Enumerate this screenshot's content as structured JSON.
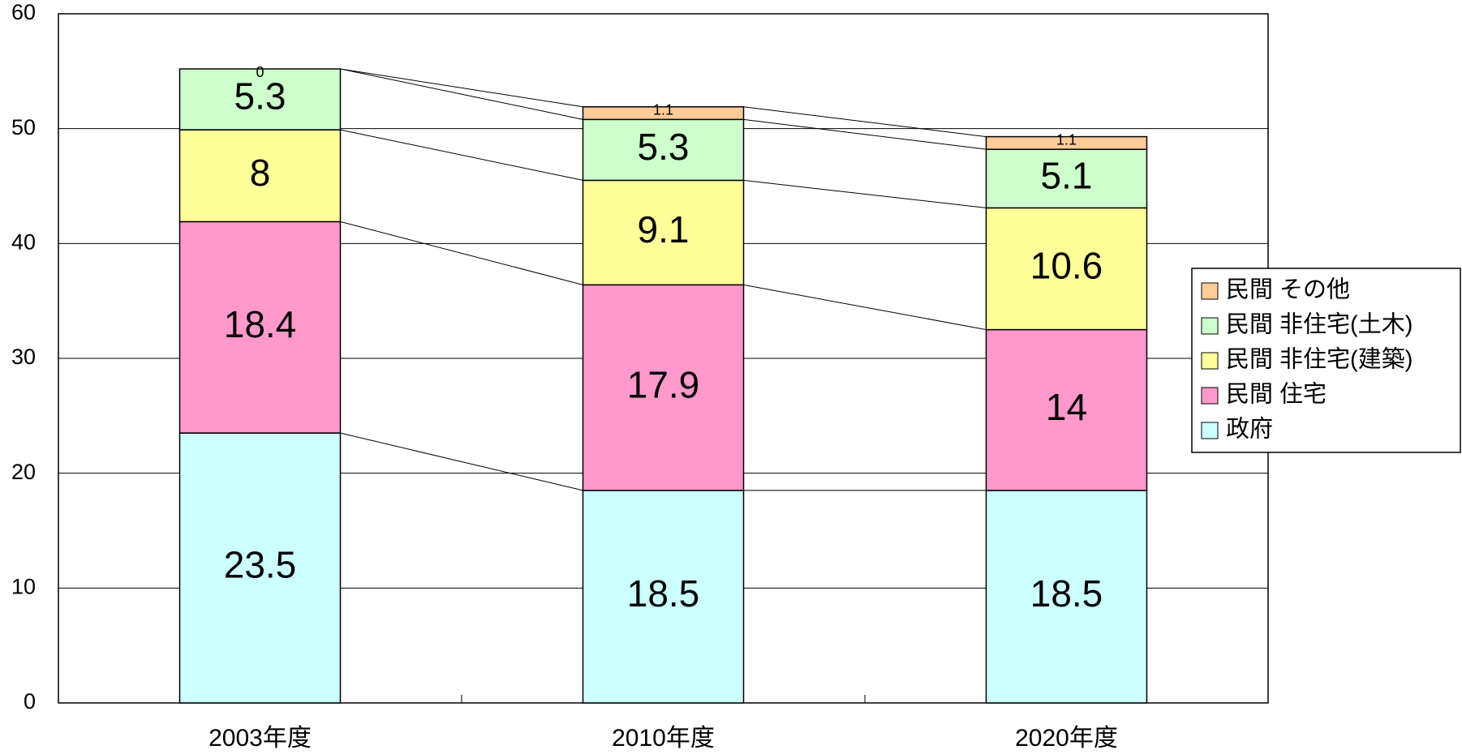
{
  "chart_data": {
    "type": "stacked_bar",
    "categories": [
      "2003年度",
      "2010年度",
      "2020年度"
    ],
    "series": [
      {
        "name": "政府",
        "color": "#ccffff",
        "values": [
          23.5,
          18.5,
          18.5
        ]
      },
      {
        "name": "民間 住宅",
        "color": "#ff99cc",
        "values": [
          18.4,
          17.9,
          14
        ]
      },
      {
        "name": "民間 非住宅(建築)",
        "color": "#ffff99",
        "values": [
          8,
          9.1,
          10.6
        ]
      },
      {
        "name": "民間 非住宅(土木)",
        "color": "#ccffcc",
        "values": [
          5.3,
          5.3,
          5.1
        ]
      },
      {
        "name": "民間 その他",
        "color": "#ffcc99",
        "values": [
          0,
          1.1,
          1.1
        ]
      }
    ],
    "ylim": [
      0,
      60
    ],
    "yticks": [
      0,
      10,
      20,
      30,
      40,
      50,
      60
    ],
    "grid": true,
    "legend": "right"
  }
}
